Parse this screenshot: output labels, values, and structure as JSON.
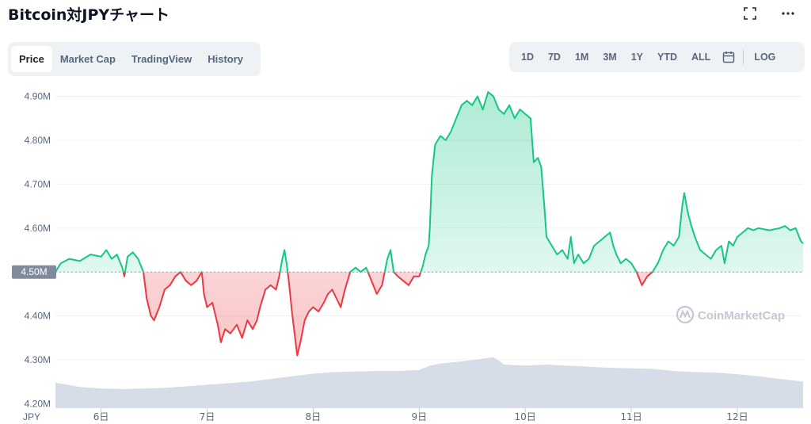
{
  "title": "Bitcoin対JPYチャート",
  "icons": {
    "fullscreen": "fullscreen-icon",
    "more": "more-icon",
    "calendar": "calendar-icon",
    "watermark": "coinmarketcap-logo-icon"
  },
  "tabs": [
    {
      "label": "Price",
      "active": true
    },
    {
      "label": "Market Cap",
      "active": false
    },
    {
      "label": "TradingView",
      "active": false
    },
    {
      "label": "History",
      "active": false
    }
  ],
  "ranges": [
    "1D",
    "7D",
    "1M",
    "3M",
    "1Y",
    "YTD",
    "ALL"
  ],
  "log_label": "LOG",
  "watermark_text": "CoinMarketCap",
  "colors": {
    "up": "#16c784",
    "down": "#ea3943",
    "volume": "#cfd6e4",
    "grid": "#eef0f3",
    "ref_badge": "#808a9d"
  },
  "chart_data": {
    "type": "line",
    "title": "",
    "xlabel": "",
    "ylabel": "",
    "currency_label": "JPY",
    "x_ticks": [
      "6日",
      "7日",
      "8日",
      "9日",
      "10日",
      "11日",
      "12日"
    ],
    "x_range": [
      5.57,
      12.62
    ],
    "y_ticks": [
      "4.90M",
      "4.80M",
      "4.70M",
      "4.60M",
      "4.50M",
      "4.40M",
      "4.30M",
      "4.20M"
    ],
    "ylim": [
      4.19,
      4.93
    ],
    "reference_value": 4.5,
    "reference_label": "4.50M",
    "grid": true,
    "series": [
      {
        "points": [
          [
            5.57,
            4.5
          ],
          [
            5.62,
            4.52
          ],
          [
            5.7,
            4.53
          ],
          [
            5.8,
            4.525
          ],
          [
            5.9,
            4.54
          ],
          [
            6.0,
            4.535
          ],
          [
            6.05,
            4.55
          ],
          [
            6.1,
            4.53
          ],
          [
            6.15,
            4.54
          ],
          [
            6.2,
            4.51
          ],
          [
            6.22,
            4.49
          ],
          [
            6.25,
            4.535
          ],
          [
            6.3,
            4.545
          ],
          [
            6.35,
            4.53
          ],
          [
            6.4,
            4.5
          ],
          [
            6.43,
            4.44
          ],
          [
            6.47,
            4.4
          ],
          [
            6.5,
            4.39
          ],
          [
            6.55,
            4.42
          ],
          [
            6.6,
            4.46
          ],
          [
            6.65,
            4.47
          ],
          [
            6.7,
            4.49
          ],
          [
            6.75,
            4.5
          ],
          [
            6.8,
            4.48
          ],
          [
            6.85,
            4.47
          ],
          [
            6.9,
            4.48
          ],
          [
            6.95,
            4.5
          ],
          [
            6.97,
            4.45
          ],
          [
            7.0,
            4.42
          ],
          [
            7.05,
            4.43
          ],
          [
            7.1,
            4.38
          ],
          [
            7.13,
            4.34
          ],
          [
            7.17,
            4.37
          ],
          [
            7.22,
            4.36
          ],
          [
            7.28,
            4.38
          ],
          [
            7.33,
            4.35
          ],
          [
            7.38,
            4.39
          ],
          [
            7.43,
            4.37
          ],
          [
            7.47,
            4.39
          ],
          [
            7.5,
            4.42
          ],
          [
            7.55,
            4.46
          ],
          [
            7.6,
            4.47
          ],
          [
            7.65,
            4.46
          ],
          [
            7.68,
            4.49
          ],
          [
            7.71,
            4.53
          ],
          [
            7.73,
            4.55
          ],
          [
            7.75,
            4.52
          ],
          [
            7.77,
            4.48
          ],
          [
            7.8,
            4.41
          ],
          [
            7.83,
            4.35
          ],
          [
            7.85,
            4.31
          ],
          [
            7.88,
            4.34
          ],
          [
            7.92,
            4.39
          ],
          [
            7.96,
            4.41
          ],
          [
            8.0,
            4.42
          ],
          [
            8.05,
            4.41
          ],
          [
            8.1,
            4.43
          ],
          [
            8.14,
            4.45
          ],
          [
            8.18,
            4.46
          ],
          [
            8.22,
            4.44
          ],
          [
            8.26,
            4.42
          ],
          [
            8.3,
            4.46
          ],
          [
            8.35,
            4.5
          ],
          [
            8.4,
            4.51
          ],
          [
            8.45,
            4.5
          ],
          [
            8.5,
            4.51
          ],
          [
            8.55,
            4.48
          ],
          [
            8.6,
            4.45
          ],
          [
            8.65,
            4.47
          ],
          [
            8.7,
            4.53
          ],
          [
            8.73,
            4.55
          ],
          [
            8.76,
            4.5
          ],
          [
            8.8,
            4.49
          ],
          [
            8.85,
            4.48
          ],
          [
            8.9,
            4.47
          ],
          [
            8.95,
            4.49
          ],
          [
            9.0,
            4.49
          ],
          [
            9.03,
            4.51
          ],
          [
            9.06,
            4.54
          ],
          [
            9.09,
            4.56
          ],
          [
            9.1,
            4.6
          ],
          [
            9.12,
            4.72
          ],
          [
            9.15,
            4.79
          ],
          [
            9.2,
            4.81
          ],
          [
            9.25,
            4.8
          ],
          [
            9.3,
            4.82
          ],
          [
            9.35,
            4.85
          ],
          [
            9.4,
            4.88
          ],
          [
            9.45,
            4.89
          ],
          [
            9.5,
            4.88
          ],
          [
            9.55,
            4.9
          ],
          [
            9.6,
            4.87
          ],
          [
            9.65,
            4.91
          ],
          [
            9.7,
            4.9
          ],
          [
            9.75,
            4.87
          ],
          [
            9.8,
            4.86
          ],
          [
            9.85,
            4.88
          ],
          [
            9.9,
            4.85
          ],
          [
            9.95,
            4.87
          ],
          [
            10.0,
            4.86
          ],
          [
            10.05,
            4.85
          ],
          [
            10.08,
            4.75
          ],
          [
            10.12,
            4.76
          ],
          [
            10.15,
            4.74
          ],
          [
            10.18,
            4.65
          ],
          [
            10.2,
            4.58
          ],
          [
            10.25,
            4.56
          ],
          [
            10.3,
            4.54
          ],
          [
            10.35,
            4.55
          ],
          [
            10.4,
            4.53
          ],
          [
            10.43,
            4.58
          ],
          [
            10.46,
            4.52
          ],
          [
            10.5,
            4.54
          ],
          [
            10.55,
            4.52
          ],
          [
            10.6,
            4.53
          ],
          [
            10.65,
            4.56
          ],
          [
            10.7,
            4.57
          ],
          [
            10.75,
            4.58
          ],
          [
            10.8,
            4.59
          ],
          [
            10.83,
            4.56
          ],
          [
            10.86,
            4.54
          ],
          [
            10.9,
            4.52
          ],
          [
            10.95,
            4.53
          ],
          [
            11.0,
            4.52
          ],
          [
            11.05,
            4.5
          ],
          [
            11.1,
            4.47
          ],
          [
            11.15,
            4.49
          ],
          [
            11.2,
            4.5
          ],
          [
            11.25,
            4.52
          ],
          [
            11.3,
            4.55
          ],
          [
            11.35,
            4.57
          ],
          [
            11.4,
            4.56
          ],
          [
            11.45,
            4.58
          ],
          [
            11.48,
            4.65
          ],
          [
            11.5,
            4.68
          ],
          [
            11.53,
            4.64
          ],
          [
            11.56,
            4.61
          ],
          [
            11.6,
            4.58
          ],
          [
            11.65,
            4.55
          ],
          [
            11.7,
            4.54
          ],
          [
            11.75,
            4.53
          ],
          [
            11.8,
            4.55
          ],
          [
            11.85,
            4.56
          ],
          [
            11.88,
            4.52
          ],
          [
            11.92,
            4.57
          ],
          [
            11.96,
            4.56
          ],
          [
            12.0,
            4.58
          ],
          [
            12.05,
            4.59
          ],
          [
            12.1,
            4.6
          ],
          [
            12.15,
            4.595
          ],
          [
            12.2,
            4.6
          ],
          [
            12.3,
            4.595
          ],
          [
            12.4,
            4.6
          ],
          [
            12.45,
            4.605
          ],
          [
            12.5,
            4.595
          ],
          [
            12.55,
            4.6
          ],
          [
            12.6,
            4.57
          ],
          [
            12.62,
            4.565
          ]
        ]
      }
    ],
    "volume": {
      "x": [
        5.57,
        5.8,
        6.0,
        6.2,
        6.4,
        6.6,
        6.8,
        7.0,
        7.2,
        7.4,
        7.6,
        7.8,
        8.0,
        8.2,
        8.4,
        8.6,
        8.8,
        9.0,
        9.1,
        9.2,
        9.4,
        9.6,
        9.7,
        9.8,
        10.0,
        10.2,
        10.4,
        10.6,
        10.8,
        11.0,
        11.2,
        11.4,
        11.6,
        11.8,
        12.0,
        12.2,
        12.4,
        12.62
      ],
      "relative_heights": [
        0.48,
        0.4,
        0.37,
        0.36,
        0.37,
        0.38,
        0.41,
        0.44,
        0.47,
        0.5,
        0.55,
        0.6,
        0.65,
        0.68,
        0.69,
        0.7,
        0.7,
        0.72,
        0.8,
        0.84,
        0.88,
        0.93,
        0.96,
        0.82,
        0.8,
        0.82,
        0.8,
        0.78,
        0.76,
        0.75,
        0.74,
        0.7,
        0.68,
        0.67,
        0.64,
        0.6,
        0.55,
        0.5
      ]
    }
  }
}
